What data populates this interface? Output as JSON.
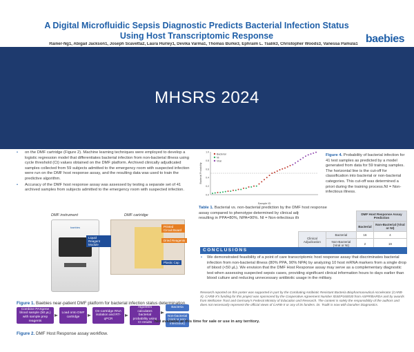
{
  "header": {
    "title_line1": "A Digital Microfluidic Sepsis Diagnostic Predicts Bacterial Infection Status",
    "title_line2": "Using Host Transcriptomic Response",
    "authors": "Rainer-Ng1, Abigail Jackson1, Joseph Scavetta2, Laura Hurley1, Devika Varma1, Thomas Burke3, Ephraim L. Tsalik3, Christopher Woods3, Vanessa Pamula1",
    "logo": "baebies"
  },
  "banner": {
    "title": "MHSRS 2024"
  },
  "methods": {
    "bullets": [
      "on the DMF cartridge (Figure 2). Machine learning techniques were employed to develop a logistic regression model that differentiates bacterial infection from non-bacterial illness using cycle threshold (Ct) values obtained on the DMF platform. Archived clinically adjudicated samples collected from 59 subjects admitted to the emergency room with suspected infection were run on the DMF host response assay, and the resulting data was used to train the predictive algorithm.",
      "Accuracy of the DMF host response assay was assessed by testing a separate set of 41 archived samples from subjects admitted to the emergency room with suspected infection."
    ]
  },
  "figure1": {
    "instrument_label": "DMF instrument",
    "cartridge_label": "DMF cartridge",
    "brand": "baebies",
    "callouts": {
      "liquid_reagent": "Liquid Reagent Module",
      "printed_circuit": "Printed Circuit Board",
      "dried_reagents": "Dried Reagents",
      "plastic_cap": "Plastic Cap"
    },
    "caption_label": "Figure 1.",
    "caption_text": "Baebies near-patient DMF platform for bacterial infection status determination."
  },
  "figure2": {
    "steps": [
      "Combine PAXgene blood sample (50 µL) with sample prep reagents",
      "Load onto DMF cartridge",
      "On-cartridge RNA isolation and RT-qPCR",
      "Algorithm calculates bacterial probability using Ct results"
    ],
    "outcomes": [
      "Bacteria",
      "Non-bacterial (viral or non-infectious)"
    ],
    "caption_label": "Figure 2.",
    "caption_text": "DMF Host Response assay workflow."
  },
  "chart_data": {
    "type": "scatter",
    "title": "",
    "xlabel": "Sample ID",
    "ylabel": "Bacterial Probability",
    "ylim": [
      0,
      1.0
    ],
    "yticks": [
      "0.0",
      "0.2",
      "0.4",
      "0.6",
      "0.8",
      "1.0"
    ],
    "legend_placement": "top-left",
    "grid": false,
    "series": [
      {
        "name": "Bacterial",
        "color": "#c0392b",
        "values": [
          0.05,
          0.08,
          0.1,
          0.12,
          0.15,
          0.18,
          0.2,
          0.25,
          0.3,
          0.35,
          0.4,
          0.45,
          0.5,
          0.52,
          0.55,
          0.58,
          0.6,
          0.62,
          0.65,
          0.68
        ]
      },
      {
        "name": "NI",
        "color": "#27ae60",
        "values": [
          0.03,
          0.04,
          0.05,
          0.06,
          0.07,
          0.08,
          0.1,
          0.12,
          0.15,
          0.18,
          0.2
        ]
      },
      {
        "name": "Viral",
        "color": "#8e44ad",
        "values": [
          0.7,
          0.74,
          0.78,
          0.82,
          0.86,
          0.9,
          0.93,
          0.95,
          0.97,
          0.99
        ]
      }
    ]
  },
  "chart_caption": {
    "label": "Figure 4.",
    "text": "Probability of bacterial infection for 41 test samples as predicted by a model generated from data for 59 training samples. The horizontal line is the cut-off for classification into bacterial or non-bacterial categories. This cut-off was determined a priori during the training process.NI = Non-infectious illness."
  },
  "table1": {
    "caption_label": "Table 1.",
    "caption_text": "Bacterial vs. non-bacterial prediction by the DMF host response assay compared to phenotype determined by clinical adjudication, resulting in PPA=80%, NPA=90%. NI = Non-infectious illness.",
    "header_main": "DMF Host Response Assay Prediction",
    "col_bacterial": "Bacterial",
    "col_nonbacterial": "Non-Bacterial (Viral or NI)",
    "row_group": "Clinical Adjudication",
    "row_bacterial": "Bacterial",
    "row_nonbacterial": "Non-Bacterial (Viral or NI)",
    "cells": [
      [
        "16",
        "4"
      ],
      [
        "2",
        "19"
      ]
    ]
  },
  "conclusions": {
    "heading": "CONCLUSIONS",
    "bullets": [
      "We demonstrated feasibility of a point of care transcriptomic host response assay that discriminates bacterial infection from non-bacterial illness (80% PPA, 90% NPA) by analyzing 10 host mRNA markers from a single drop of blood (<50 µL). We envision that the DMF Host Response assay may serve as a complementary diagnostic test when assessing suspected sepsis cases, providing significant clinical information hours to days earlier than blood culture and reducing unnecessary antibiotic usage in the military."
    ],
    "funding": "Research reported on this poster was supported in part by the Combating Antibiotic Resistant Bacteria Biopharmaceutical Accelerator (CARB-X). CARB-X's funding for this project was sponsored by the Cooperative Agreement Number IDSEP160030 from ASPR/BARDA and by awards from Wellcome Trust and Germany's Federal Ministry of Education and Research. The content is solely the responsibility of the authors and does not necessarily represent the official views of CARB-X or any of its funders. Dr. Tsalik is now with Danaher Diagnostics."
  },
  "footer": {
    "disclaimer": "Not available at this time for sale or use in any territory."
  }
}
